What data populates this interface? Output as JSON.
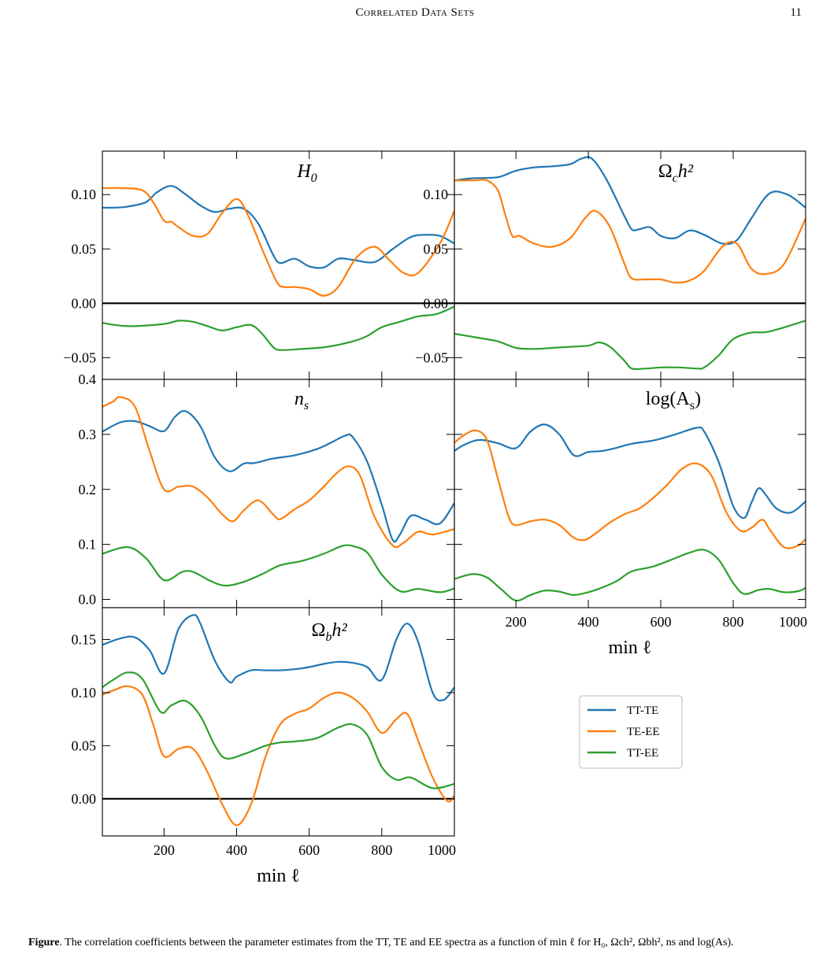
{
  "page": {
    "running_title": "Correlated Data Sets",
    "page_number": "11",
    "caption_label": "Figure",
    "caption_text": "The correlation coefficients between the parameter estimates from the TT, TE and EE spectra as a function of min ℓ for H₀, Ωch², Ωbh², ns and log(As)."
  },
  "legend": {
    "entries": [
      {
        "label": "TT-TE",
        "color": "#1f77b4"
      },
      {
        "label": "TE-EE",
        "color": "#ff7f0e"
      },
      {
        "label": "TT-EE",
        "color": "#2ca02c"
      }
    ]
  },
  "chart_data": [
    {
      "type": "line",
      "panel": "H0",
      "title_tex": [
        "H",
        "0",
        ""
      ],
      "xlim": [
        30,
        1000
      ],
      "ylim": [
        -0.07,
        0.14
      ],
      "yticks": [
        "-0.05",
        "0.00",
        "0.05",
        "0.10"
      ],
      "xticks": [],
      "zero_line": true,
      "series": [
        {
          "name": "TT-TE",
          "x": [
            30,
            60,
            100,
            150,
            180,
            220,
            260,
            300,
            340,
            380,
            420,
            460,
            500,
            520,
            560,
            600,
            640,
            680,
            720,
            780,
            830,
            880,
            920,
            960,
            1000
          ],
          "y": [
            0.088,
            0.088,
            0.089,
            0.093,
            0.102,
            0.108,
            0.1,
            0.09,
            0.084,
            0.087,
            0.087,
            0.073,
            0.045,
            0.037,
            0.041,
            0.034,
            0.033,
            0.041,
            0.04,
            0.038,
            0.05,
            0.061,
            0.063,
            0.062,
            0.055
          ]
        },
        {
          "name": "TE-EE",
          "x": [
            30,
            80,
            140,
            170,
            200,
            220,
            240,
            280,
            320,
            360,
            400,
            430,
            470,
            510,
            530,
            560,
            600,
            640,
            680,
            730,
            780,
            820,
            860,
            900,
            960,
            1000
          ],
          "y": [
            0.106,
            0.106,
            0.104,
            0.093,
            0.076,
            0.075,
            0.07,
            0.062,
            0.064,
            0.083,
            0.096,
            0.082,
            0.05,
            0.02,
            0.015,
            0.015,
            0.013,
            0.007,
            0.015,
            0.042,
            0.052,
            0.04,
            0.028,
            0.028,
            0.055,
            0.085
          ]
        },
        {
          "name": "TT-EE",
          "x": [
            30,
            100,
            200,
            240,
            280,
            320,
            360,
            400,
            440,
            470,
            500,
            520,
            580,
            650,
            720,
            760,
            800,
            850,
            900,
            950,
            1000
          ],
          "y": [
            -0.018,
            -0.021,
            -0.019,
            -0.016,
            -0.017,
            -0.021,
            -0.025,
            -0.022,
            -0.02,
            -0.028,
            -0.04,
            -0.043,
            -0.042,
            -0.04,
            -0.035,
            -0.03,
            -0.022,
            -0.017,
            -0.012,
            -0.01,
            -0.003
          ]
        }
      ]
    },
    {
      "type": "line",
      "panel": "Omega_c_h2",
      "title_tex": [
        "Ω",
        "c",
        "h²"
      ],
      "xlim": [
        30,
        1000
      ],
      "ylim": [
        -0.07,
        0.14
      ],
      "yticks": [
        "-0.05",
        "0.00",
        "0.05",
        "0.10"
      ],
      "xticks": [],
      "zero_line": true,
      "series": [
        {
          "name": "TT-TE",
          "x": [
            30,
            80,
            150,
            200,
            250,
            300,
            350,
            380,
            410,
            450,
            500,
            520,
            540,
            570,
            600,
            640,
            680,
            720,
            770,
            810,
            850,
            900,
            950,
            1000
          ],
          "y": [
            0.113,
            0.115,
            0.116,
            0.122,
            0.125,
            0.126,
            0.128,
            0.133,
            0.133,
            0.114,
            0.08,
            0.068,
            0.068,
            0.07,
            0.062,
            0.06,
            0.067,
            0.063,
            0.055,
            0.058,
            0.078,
            0.101,
            0.1,
            0.088
          ]
        },
        {
          "name": "TE-EE",
          "x": [
            30,
            80,
            120,
            150,
            170,
            190,
            210,
            250,
            300,
            350,
            390,
            420,
            460,
            500,
            520,
            560,
            600,
            640,
            680,
            720,
            770,
            810,
            850,
            890,
            940,
            1000
          ],
          "y": [
            0.113,
            0.113,
            0.113,
            0.104,
            0.082,
            0.062,
            0.062,
            0.055,
            0.052,
            0.06,
            0.078,
            0.085,
            0.07,
            0.036,
            0.023,
            0.022,
            0.022,
            0.019,
            0.021,
            0.03,
            0.052,
            0.055,
            0.032,
            0.027,
            0.036,
            0.078
          ]
        },
        {
          "name": "TT-EE",
          "x": [
            30,
            100,
            150,
            200,
            250,
            300,
            350,
            400,
            430,
            460,
            500,
            520,
            560,
            600,
            650,
            700,
            720,
            760,
            800,
            850,
            900,
            1000
          ],
          "y": [
            -0.028,
            -0.032,
            -0.035,
            -0.041,
            -0.042,
            -0.041,
            -0.04,
            -0.039,
            -0.036,
            -0.04,
            -0.053,
            -0.06,
            -0.06,
            -0.059,
            -0.059,
            -0.06,
            -0.059,
            -0.048,
            -0.033,
            -0.027,
            -0.026,
            -0.016
          ]
        }
      ]
    },
    {
      "type": "line",
      "panel": "n_s",
      "title_tex": [
        "n",
        "s",
        ""
      ],
      "xlim": [
        30,
        1000
      ],
      "ylim": [
        -0.015,
        0.4
      ],
      "yticks": [
        "0.0",
        "0.1",
        "0.2",
        "0.3",
        "0.4"
      ],
      "xticks": [],
      "zero_line": false,
      "series": [
        {
          "name": "TT-TE",
          "x": [
            30,
            80,
            120,
            160,
            200,
            230,
            260,
            300,
            340,
            380,
            420,
            450,
            500,
            560,
            620,
            660,
            700,
            720,
            760,
            800,
            830,
            850,
            880,
            920,
            960,
            1000
          ],
          "y": [
            0.305,
            0.322,
            0.324,
            0.315,
            0.306,
            0.332,
            0.342,
            0.315,
            0.258,
            0.233,
            0.247,
            0.248,
            0.256,
            0.262,
            0.273,
            0.285,
            0.298,
            0.295,
            0.25,
            0.172,
            0.108,
            0.118,
            0.152,
            0.145,
            0.138,
            0.175
          ]
        },
        {
          "name": "TE-EE",
          "x": [
            30,
            60,
            80,
            120,
            160,
            200,
            240,
            280,
            320,
            360,
            390,
            420,
            460,
            500,
            520,
            560,
            600,
            640,
            680,
            710,
            740,
            780,
            830,
            860,
            900,
            940,
            1000
          ],
          "y": [
            0.35,
            0.36,
            0.368,
            0.35,
            0.27,
            0.2,
            0.205,
            0.205,
            0.185,
            0.155,
            0.142,
            0.162,
            0.18,
            0.155,
            0.146,
            0.164,
            0.18,
            0.205,
            0.232,
            0.242,
            0.225,
            0.15,
            0.098,
            0.103,
            0.123,
            0.118,
            0.128
          ]
        },
        {
          "name": "TT-EE",
          "x": [
            30,
            100,
            150,
            200,
            250,
            280,
            330,
            370,
            420,
            470,
            520,
            580,
            640,
            690,
            720,
            760,
            800,
            850,
            900,
            960,
            1000
          ],
          "y": [
            0.083,
            0.095,
            0.075,
            0.035,
            0.05,
            0.05,
            0.033,
            0.025,
            0.032,
            0.046,
            0.062,
            0.07,
            0.083,
            0.097,
            0.097,
            0.085,
            0.045,
            0.015,
            0.019,
            0.013,
            0.02
          ]
        }
      ]
    },
    {
      "type": "line",
      "panel": "log_As",
      "title_tex": [
        "log(A",
        "s",
        ")"
      ],
      "xlim": [
        30,
        1000
      ],
      "ylim": [
        -0.015,
        0.4
      ],
      "xticks": [
        "200",
        "400",
        "600",
        "800",
        "1000"
      ],
      "yticks": [],
      "xlabel": "min ℓ",
      "zero_line": false,
      "series": [
        {
          "name": "TT-TE",
          "x": [
            30,
            60,
            100,
            150,
            200,
            240,
            280,
            320,
            360,
            400,
            440,
            480,
            520,
            580,
            640,
            700,
            720,
            760,
            800,
            830,
            850,
            870,
            890,
            920,
            960,
            1000
          ],
          "y": [
            0.27,
            0.282,
            0.29,
            0.284,
            0.275,
            0.305,
            0.318,
            0.3,
            0.262,
            0.268,
            0.27,
            0.276,
            0.283,
            0.289,
            0.3,
            0.312,
            0.305,
            0.25,
            0.17,
            0.148,
            0.175,
            0.202,
            0.19,
            0.165,
            0.158,
            0.178
          ]
        },
        {
          "name": "TE-EE",
          "x": [
            30,
            60,
            90,
            120,
            150,
            180,
            200,
            240,
            280,
            320,
            360,
            390,
            420,
            460,
            500,
            540,
            580,
            620,
            660,
            700,
            740,
            780,
            820,
            850,
            880,
            900,
            940,
            980,
            1000
          ],
          "y": [
            0.285,
            0.3,
            0.307,
            0.29,
            0.22,
            0.15,
            0.135,
            0.142,
            0.145,
            0.135,
            0.112,
            0.108,
            0.12,
            0.14,
            0.155,
            0.165,
            0.185,
            0.21,
            0.238,
            0.247,
            0.225,
            0.16,
            0.125,
            0.13,
            0.145,
            0.128,
            0.095,
            0.098,
            0.11
          ]
        },
        {
          "name": "TT-EE",
          "x": [
            30,
            80,
            120,
            160,
            200,
            240,
            280,
            320,
            360,
            400,
            440,
            480,
            520,
            580,
            640,
            680,
            720,
            760,
            800,
            830,
            870,
            900,
            940,
            980,
            1000
          ],
          "y": [
            0.037,
            0.046,
            0.04,
            0.018,
            -0.002,
            0.008,
            0.016,
            0.014,
            0.008,
            0.013,
            0.022,
            0.034,
            0.051,
            0.06,
            0.075,
            0.085,
            0.09,
            0.072,
            0.03,
            0.01,
            0.017,
            0.019,
            0.013,
            0.015,
            0.021
          ]
        }
      ]
    },
    {
      "type": "line",
      "panel": "Omega_b_h2",
      "title_tex": [
        "Ω",
        "b",
        "h²"
      ],
      "xlim": [
        30,
        1000
      ],
      "ylim": [
        -0.035,
        0.18
      ],
      "yticks": [
        "0.00",
        "0.05",
        "0.10",
        "0.15"
      ],
      "xticks": [
        "200",
        "400",
        "600",
        "800",
        "1000"
      ],
      "xlabel": "min ℓ",
      "zero_line": true,
      "series": [
        {
          "name": "TT-TE",
          "x": [
            30,
            80,
            120,
            160,
            200,
            240,
            280,
            300,
            340,
            380,
            400,
            440,
            480,
            520,
            560,
            600,
            640,
            680,
            720,
            760,
            800,
            840,
            870,
            900,
            940,
            970,
            1000
          ],
          "y": [
            0.145,
            0.151,
            0.152,
            0.14,
            0.118,
            0.16,
            0.173,
            0.165,
            0.13,
            0.11,
            0.115,
            0.121,
            0.121,
            0.121,
            0.122,
            0.124,
            0.127,
            0.129,
            0.128,
            0.124,
            0.112,
            0.15,
            0.165,
            0.148,
            0.1,
            0.093,
            0.105
          ]
        },
        {
          "name": "TE-EE",
          "x": [
            30,
            60,
            100,
            140,
            170,
            200,
            240,
            280,
            320,
            360,
            400,
            440,
            480,
            520,
            560,
            600,
            640,
            680,
            720,
            760,
            800,
            840,
            870,
            900,
            940,
            980,
            1000
          ],
          "y": [
            0.098,
            0.102,
            0.106,
            0.098,
            0.07,
            0.04,
            0.047,
            0.047,
            0.025,
            -0.005,
            -0.025,
            -0.005,
            0.04,
            0.07,
            0.08,
            0.085,
            0.095,
            0.1,
            0.095,
            0.082,
            0.062,
            0.075,
            0.08,
            0.055,
            0.02,
            -0.002,
            0.003
          ]
        },
        {
          "name": "TT-EE",
          "x": [
            30,
            60,
            100,
            140,
            190,
            220,
            260,
            300,
            340,
            370,
            420,
            480,
            520,
            560,
            620,
            680,
            720,
            760,
            800,
            840,
            880,
            940,
            1000
          ],
          "y": [
            0.105,
            0.112,
            0.119,
            0.113,
            0.082,
            0.088,
            0.092,
            0.078,
            0.05,
            0.038,
            0.042,
            0.05,
            0.053,
            0.054,
            0.057,
            0.067,
            0.07,
            0.06,
            0.03,
            0.018,
            0.02,
            0.01,
            0.014
          ]
        }
      ]
    }
  ]
}
